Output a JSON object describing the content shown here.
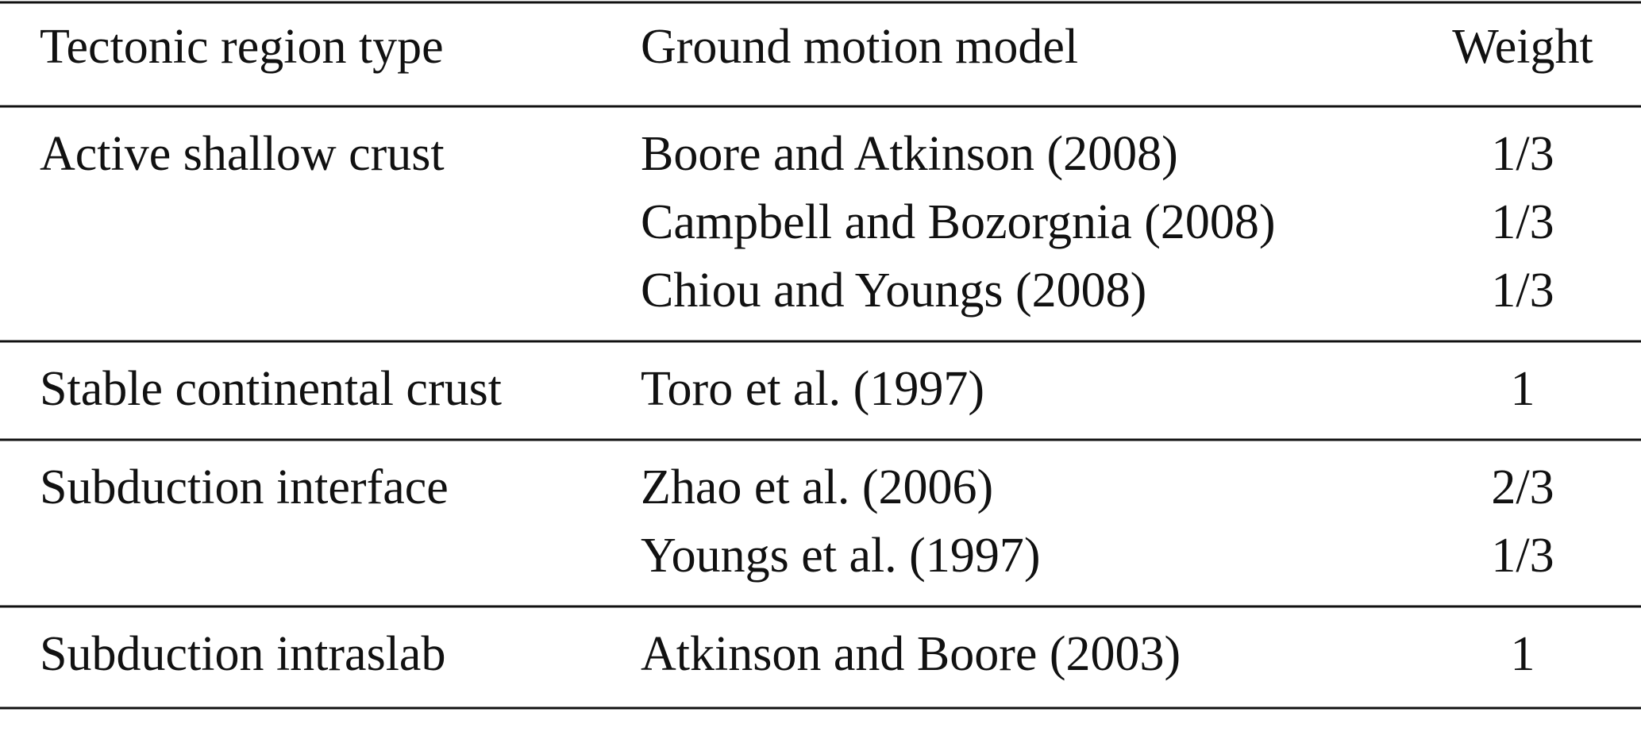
{
  "table": {
    "header": [
      "Tectonic region type",
      "Ground motion model",
      "Weight"
    ],
    "groups": [
      {
        "region": "Active shallow crust",
        "rows": [
          {
            "model": "Boore and Atkinson (2008)",
            "weight": "1/3"
          },
          {
            "model": "Campbell and Bozorgnia (2008)",
            "weight": "1/3"
          },
          {
            "model": "Chiou and Youngs (2008)",
            "weight": "1/3"
          }
        ]
      },
      {
        "region": "Stable continental crust",
        "rows": [
          {
            "model": "Toro et al. (1997)",
            "weight": "1"
          }
        ]
      },
      {
        "region": "Subduction interface",
        "rows": [
          {
            "model": "Zhao et al. (2006)",
            "weight": "2/3"
          },
          {
            "model": "Youngs et al. (1997)",
            "weight": "1/3"
          }
        ]
      },
      {
        "region": "Subduction intraslab",
        "rows": [
          {
            "model": "Atkinson and Boore (2003)",
            "weight": "1"
          }
        ]
      }
    ]
  }
}
